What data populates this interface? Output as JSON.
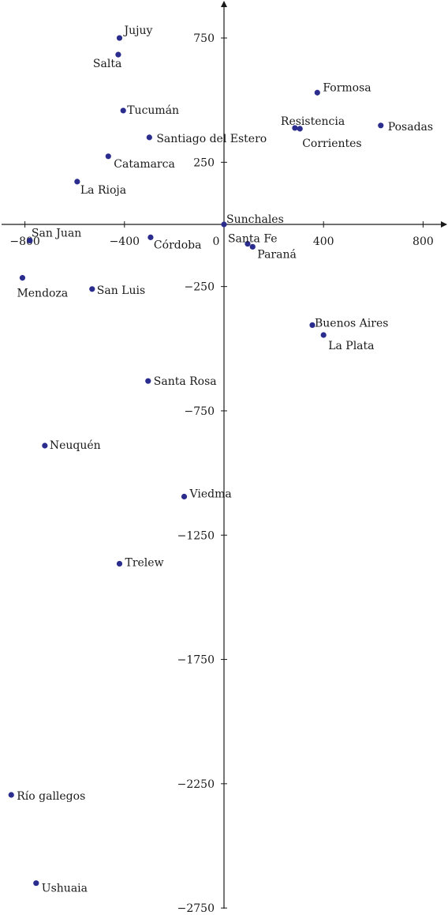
{
  "chart_data": {
    "type": "scatter",
    "title": "",
    "xlabel": "",
    "ylabel": "",
    "xlim": [
      -900,
      900
    ],
    "ylim": [
      -2750,
      900
    ],
    "grid": false,
    "colors": {
      "point": "#2b2d8e",
      "axis": "#1a1a1a"
    },
    "x_ticks": [
      "-800",
      "-400",
      "0",
      "400",
      "800"
    ],
    "y_ticks": [
      "750",
      "250",
      "-250",
      "-750",
      "-1250",
      "-1750",
      "-2250",
      "-2750"
    ],
    "points": [
      {
        "label": "Jujuy",
        "x": -420,
        "y": 750
      },
      {
        "label": "Salta",
        "x": -425,
        "y": 683
      },
      {
        "label": "Formosa",
        "x": 375,
        "y": 530
      },
      {
        "label": "Tucumán",
        "x": -405,
        "y": 458
      },
      {
        "label": "Resistencia",
        "x": 285,
        "y": 388
      },
      {
        "label": "Corrientes",
        "x": 305,
        "y": 385
      },
      {
        "label": "Posadas",
        "x": 630,
        "y": 398
      },
      {
        "label": "Santiago del Estero",
        "x": -300,
        "y": 350
      },
      {
        "label": "Catamarca",
        "x": -465,
        "y": 274
      },
      {
        "label": "La Rioja",
        "x": -590,
        "y": 172
      },
      {
        "label": "Sunchales",
        "x": 0,
        "y": 0
      },
      {
        "label": "San Juan",
        "x": -780,
        "y": -65
      },
      {
        "label": "Córdoba",
        "x": -295,
        "y": -52
      },
      {
        "label": "Santa Fe",
        "x": 95,
        "y": -78
      },
      {
        "label": "Paraná",
        "x": 115,
        "y": -90
      },
      {
        "label": "Mendoza",
        "x": -810,
        "y": -215
      },
      {
        "label": "San Luis",
        "x": -530,
        "y": -260
      },
      {
        "label": "Buenos Aires",
        "x": 355,
        "y": -405
      },
      {
        "label": "La Plata",
        "x": 400,
        "y": -445
      },
      {
        "label": "Santa Rosa",
        "x": -305,
        "y": -630
      },
      {
        "label": "Neuquén",
        "x": -720,
        "y": -890
      },
      {
        "label": "Viedma",
        "x": -160,
        "y": -1095
      },
      {
        "label": "Trelew",
        "x": -420,
        "y": -1365
      },
      {
        "label": "Río gallegos",
        "x": -855,
        "y": -2295
      },
      {
        "label": "Ushuaia",
        "x": -755,
        "y": -2650
      }
    ]
  }
}
